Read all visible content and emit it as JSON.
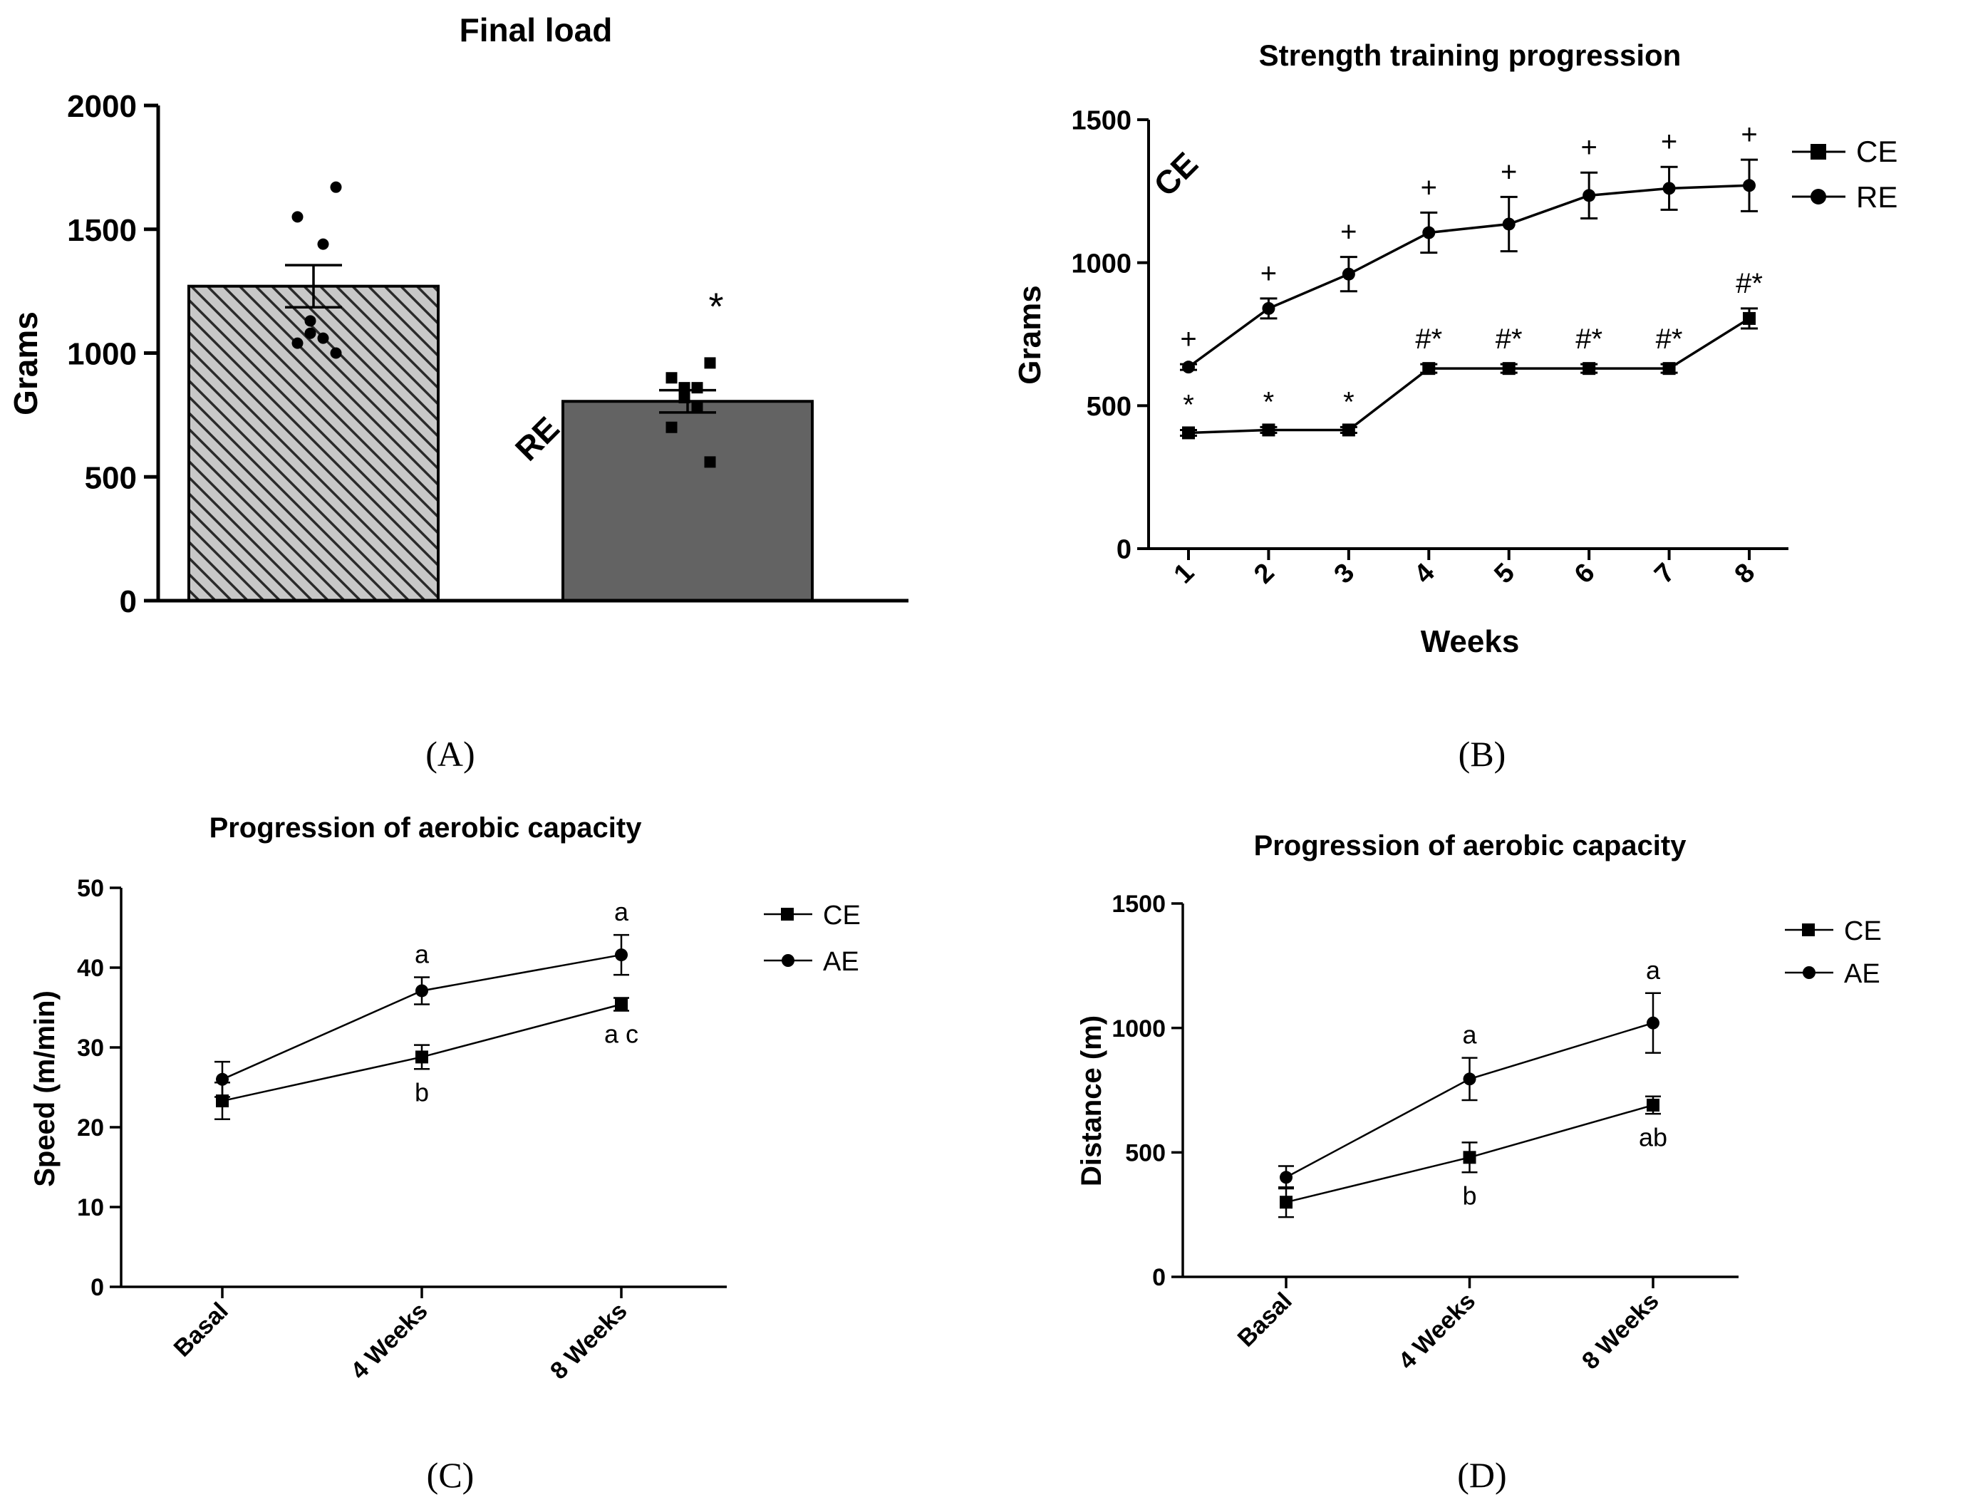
{
  "panels": [
    {
      "panel_label": "(A)",
      "chart_data": {
        "type": "bar",
        "title": "Final load",
        "xlabel": "",
        "ylabel": "Grams",
        "ylim": [
          0,
          2000
        ],
        "yticks": [
          0,
          500,
          1000,
          1500,
          2000
        ],
        "categories": [
          "RE",
          "CE"
        ],
        "values": [
          1270,
          805
        ],
        "errors": [
          85,
          45
        ],
        "bar_styles": [
          "hatched",
          "solid"
        ],
        "bar_colors": [
          "#bbbbbb",
          "#636363"
        ],
        "points": [
          [
            1670,
            1550,
            1440,
            1130,
            1080,
            1060,
            1040,
            1000
          ],
          [
            960,
            900,
            860,
            860,
            820,
            780,
            700,
            560
          ]
        ],
        "point_markers": [
          "circle",
          "square"
        ],
        "annotations": [
          {
            "category": "CE",
            "text": "*",
            "y": 1250
          }
        ],
        "grid": false
      }
    },
    {
      "panel_label": "(B)",
      "chart_data": {
        "type": "line",
        "title": "Strength training progression",
        "xlabel": "Weeks",
        "ylabel": "Grams",
        "ylim": [
          0,
          1500
        ],
        "yticks": [
          0,
          500,
          1000,
          1500
        ],
        "x": [
          "1",
          "2",
          "3",
          "4",
          "5",
          "6",
          "7",
          "8"
        ],
        "series": [
          {
            "name": "CE",
            "marker": "square",
            "values": [
              405,
              415,
              415,
              630,
              630,
              630,
              630,
              805
            ],
            "errors": [
              10,
              10,
              10,
              15,
              15,
              15,
              15,
              35
            ],
            "annotations": [
              "*",
              "*",
              "*",
              "#*",
              "#*",
              "#*",
              "#*",
              "#*"
            ]
          },
          {
            "name": "RE",
            "marker": "circle",
            "values": [
              635,
              840,
              960,
              1105,
              1135,
              1235,
              1260,
              1270
            ],
            "errors": [
              10,
              35,
              60,
              70,
              95,
              80,
              75,
              90
            ],
            "annotations": [
              "+",
              "+",
              "+",
              "+",
              "+",
              "+",
              "+",
              "+"
            ]
          }
        ],
        "legend": "right",
        "grid": false
      }
    },
    {
      "panel_label": "(C)",
      "chart_data": {
        "type": "line",
        "title": "Progression of aerobic capacity",
        "xlabel": "",
        "ylabel": "Speed (m/min)",
        "ylim": [
          0,
          50
        ],
        "yticks": [
          0,
          10,
          20,
          30,
          40,
          50
        ],
        "x": [
          "Basal",
          "4 Weeks",
          "8 Weeks"
        ],
        "series": [
          {
            "name": "CE",
            "marker": "square",
            "values": [
              23.3,
              28.8,
              35.4
            ],
            "errors": [
              2.3,
              1.5,
              0.8
            ],
            "annotations": [
              "",
              "b",
              "a c"
            ],
            "annotation_side": "below"
          },
          {
            "name": "AE",
            "marker": "circle",
            "values": [
              26.0,
              37.1,
              41.6
            ],
            "errors": [
              2.2,
              1.7,
              2.5
            ],
            "annotations": [
              "",
              "a",
              "a"
            ],
            "annotation_side": "above"
          }
        ],
        "legend": "right",
        "grid": false
      }
    },
    {
      "panel_label": "(D)",
      "chart_data": {
        "type": "line",
        "title": "Progression of aerobic capacity",
        "xlabel": "",
        "ylabel": "Distance (m)",
        "ylim": [
          0,
          1500
        ],
        "yticks": [
          0,
          500,
          1000,
          1500
        ],
        "x": [
          "Basal",
          "4 Weeks",
          "8 Weeks"
        ],
        "series": [
          {
            "name": "CE",
            "marker": "square",
            "values": [
              300,
              480,
              690
            ],
            "errors": [
              60,
              60,
              35
            ],
            "annotations": [
              "",
              "b",
              "ab"
            ],
            "annotation_side": "below"
          },
          {
            "name": "AE",
            "marker": "circle",
            "values": [
              400,
              795,
              1020
            ],
            "errors": [
              45,
              85,
              120
            ],
            "annotations": [
              "",
              "a",
              "a"
            ],
            "annotation_side": "above"
          }
        ],
        "legend": "right",
        "grid": false
      }
    }
  ]
}
